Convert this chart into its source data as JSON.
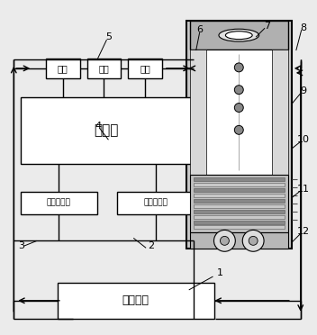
{
  "bg_color": "#ebebeb",
  "line_color": "#000000",
  "box_bg": "#ffffff",
  "box_texts": {
    "controller": "控制器",
    "temp_sensor": "温度传感器",
    "pressure_sensor": "压力传感器",
    "cooling_tank": "冷却水筱",
    "pump1": "泵１",
    "pump2": "泵２",
    "pump3": "泵３"
  },
  "figsize": [
    3.52,
    3.72
  ],
  "dpi": 100
}
